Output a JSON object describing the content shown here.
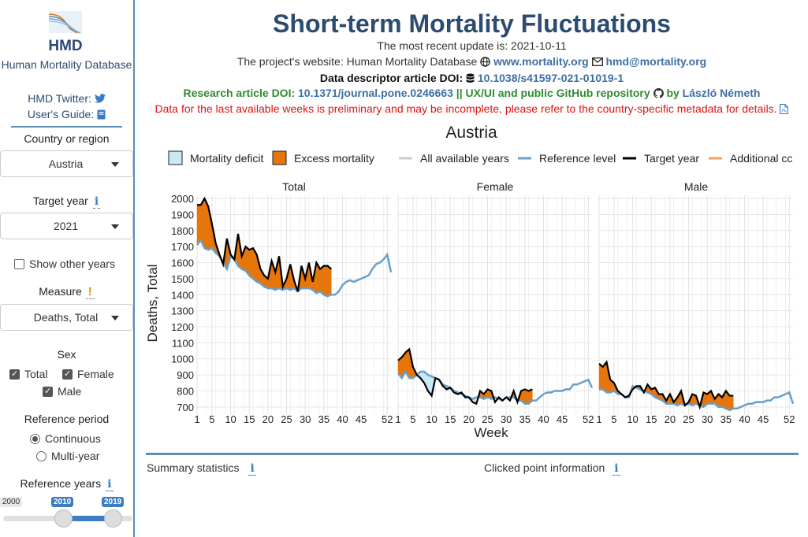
{
  "sidebar": {
    "logo_text": "HMD",
    "org_name": "Human Mortality Database",
    "twitter_label": "HMD Twitter:",
    "guide_label": "User's Guide:",
    "country": {
      "label": "Country or region",
      "value": "Austria"
    },
    "target_year": {
      "label": "Target year",
      "value": "2021"
    },
    "show_other_years": {
      "label": "Show other years",
      "checked": false
    },
    "measure": {
      "label": "Measure",
      "value": "Deaths, Total"
    },
    "sex": {
      "label": "Sex",
      "options": [
        {
          "label": "Total",
          "checked": true
        },
        {
          "label": "Female",
          "checked": true
        },
        {
          "label": "Male",
          "checked": true
        }
      ]
    },
    "reference_period": {
      "label": "Reference period",
      "options": [
        {
          "label": "Continuous",
          "selected": true
        },
        {
          "label": "Multi-year",
          "selected": false
        }
      ]
    },
    "reference_years": {
      "label": "Reference years",
      "min": "2000",
      "from": "2010",
      "to": "2019"
    },
    "info_glyph": "i",
    "warn_glyph": "!"
  },
  "header": {
    "title": "Short-term Mortality Fluctuations",
    "update_text": "The most recent update is: 2021-10-11",
    "website_prefix": "The project's website: Human Mortality Database",
    "website_link": "www.mortality.org",
    "email_link": "hmd@mortality.org",
    "descriptor_prefix": "Data descriptor article DOI:",
    "descriptor_link": "10.1038/s41597-021-01019-1",
    "research_prefix": "Research article DOI:",
    "research_link": "10.1371/journal.pone.0246663",
    "research_mid": "|| UX/UI and public GitHub repository",
    "research_by": "by",
    "author_link": "László Németh",
    "warning": "Data for the last available weeks is preliminary and may be incomplete, please refer to the country-specific metadata for details."
  },
  "chart_data": {
    "type": "area",
    "title": "Austria",
    "xlabel": "Week",
    "ylabel": "Deaths, Total",
    "legend": [
      {
        "name": "Mortality deficit",
        "color": "#cbe8f6"
      },
      {
        "name": "Excess mortality",
        "color": "#e6760a"
      },
      {
        "name": "All available years",
        "color": "#cccccc"
      },
      {
        "name": "Reference level",
        "color": "#6a9fca"
      },
      {
        "name": "Target year",
        "color": "#000000"
      },
      {
        "name": "Additional cc",
        "color": "#f5a25d"
      }
    ],
    "legend_position": "top",
    "xticks": [
      1,
      5,
      10,
      15,
      20,
      25,
      30,
      35,
      40,
      45,
      52
    ],
    "xlim": [
      1,
      53
    ],
    "ylim": [
      650,
      2020
    ],
    "yticks": [
      700,
      800,
      900,
      1000,
      1100,
      1200,
      1300,
      1400,
      1500,
      1600,
      1700,
      1800,
      1900,
      2000
    ],
    "panels": [
      {
        "name": "Total",
        "reference": [
          1710,
          1740,
          1690,
          1680,
          1690,
          1660,
          1640,
          1600,
          1560,
          1640,
          1620,
          1580,
          1560,
          1550,
          1520,
          1500,
          1480,
          1470,
          1450,
          1440,
          1440,
          1430,
          1440,
          1430,
          1440,
          1430,
          1440,
          1420,
          1440,
          1440,
          1440,
          1430,
          1410,
          1420,
          1400,
          1390,
          1400,
          1400,
          1420,
          1460,
          1480,
          1490,
          1480,
          1490,
          1500,
          1510,
          1520,
          1560,
          1590,
          1600,
          1620,
          1650,
          1540
        ],
        "target": [
          1960,
          1960,
          2000,
          1950,
          1840,
          1720,
          1650,
          1590,
          1750,
          1650,
          1620,
          1780,
          1640,
          1700,
          1680,
          1690,
          1650,
          1560,
          1520,
          1500,
          1610,
          1540,
          1640,
          1450,
          1500,
          1590,
          1490,
          1420,
          1580,
          1500,
          1600,
          1480,
          1600,
          1560,
          1580,
          1580,
          1560
        ]
      },
      {
        "name": "Female",
        "reference": [
          910,
          880,
          920,
          880,
          880,
          900,
          920,
          920,
          900,
          890,
          880,
          870,
          840,
          830,
          820,
          800,
          790,
          780,
          770,
          760,
          750,
          760,
          760,
          750,
          760,
          750,
          760,
          750,
          740,
          760,
          760,
          760,
          740,
          740,
          720,
          720,
          740,
          740,
          760,
          780,
          790,
          790,
          800,
          800,
          800,
          810,
          810,
          840,
          840,
          850,
          860,
          870,
          820
        ],
        "target": [
          990,
          1010,
          1040,
          1060,
          950,
          900,
          880,
          850,
          800,
          770,
          880,
          870,
          830,
          810,
          820,
          790,
          780,
          790,
          760,
          760,
          730,
          720,
          800,
          780,
          810,
          800,
          730,
          760,
          740,
          760,
          740,
          800,
          730,
          800,
          810,
          800,
          810
        ]
      },
      {
        "name": "Male",
        "reference": [
          810,
          810,
          790,
          790,
          800,
          780,
          780,
          760,
          760,
          830,
          820,
          810,
          800,
          790,
          780,
          760,
          750,
          740,
          720,
          720,
          720,
          710,
          720,
          710,
          720,
          710,
          720,
          710,
          700,
          720,
          720,
          720,
          700,
          700,
          690,
          680,
          690,
          690,
          700,
          710,
          720,
          720,
          730,
          730,
          730,
          740,
          740,
          760,
          760,
          770,
          780,
          790,
          720
        ],
        "target": [
          970,
          950,
          980,
          870,
          850,
          800,
          780,
          760,
          770,
          810,
          830,
          830,
          790,
          840,
          810,
          820,
          780,
          780,
          740,
          780,
          730,
          760,
          800,
          710,
          730,
          780,
          770,
          700,
          790,
          780,
          800,
          750,
          780,
          760,
          800,
          770,
          770
        ]
      }
    ]
  },
  "bottom": {
    "summary_label": "Summary statistics",
    "clicked_label": "Clicked point information"
  }
}
